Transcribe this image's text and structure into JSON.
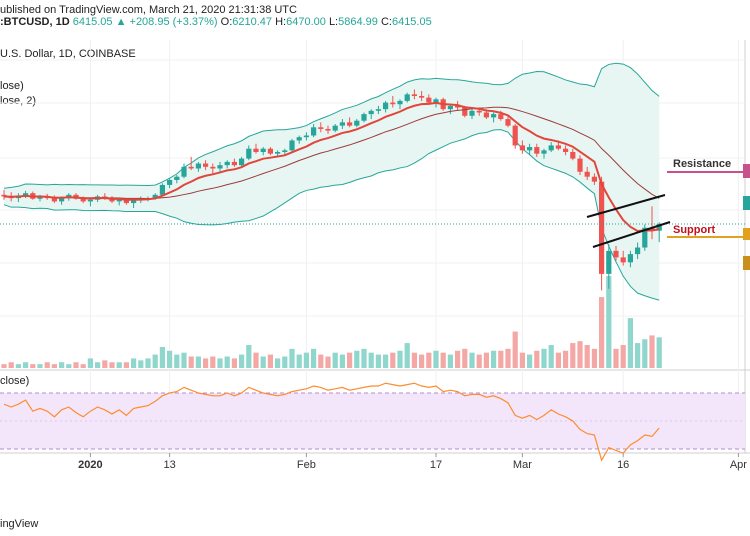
{
  "header": {
    "published": "ublished on TradingView.com, March 21, 2020 21:31:38 UTC",
    "symbol": ":BTCUSD, 1D",
    "last": "6415.05",
    "arrow": "▲",
    "change": "+208.95 (+3.37%)",
    "o_label": "O:",
    "o": "6210.47",
    "h_label": "H:",
    "h": "6470.00",
    "l_label": "L:",
    "l": "5864.99",
    "c_label": "C:",
    "c": "6415.05"
  },
  "subtitle": "U.S. Dollar, 1D, COINBASE",
  "indicators": {
    "line1": "lose)",
    "line2": "lose, 2)",
    "rsi": "close)"
  },
  "footer": "ingView",
  "colors": {
    "up": "#26a69a",
    "down": "#ef5350",
    "bands": "#26a69a",
    "band_fill": "#e8f6f3",
    "ema": "#e2463a",
    "sma": "#9c3b3b",
    "rsi_line": "#ff8c2e",
    "rsi_band": "#f3e6fb",
    "resistance": "#c8508c",
    "support": "#e0a020",
    "vol_up": "#8fd6cc",
    "vol_down": "#f4a8a6"
  },
  "chart_data": {
    "type": "candlestick",
    "x_tick_labels": [
      "2020",
      "13",
      "Feb",
      "17",
      "Mar",
      "16",
      "Apr"
    ],
    "annotations": [
      "Resistance",
      "Support"
    ],
    "ohlc": [
      [
        7300,
        7450,
        7150,
        7250
      ],
      [
        7250,
        7380,
        7100,
        7200
      ],
      [
        7200,
        7350,
        7080,
        7280
      ],
      [
        7280,
        7420,
        7200,
        7350
      ],
      [
        7350,
        7400,
        7150,
        7180
      ],
      [
        7180,
        7300,
        7100,
        7250
      ],
      [
        7250,
        7330,
        7150,
        7200
      ],
      [
        7200,
        7280,
        7050,
        7100
      ],
      [
        7100,
        7250,
        7000,
        7200
      ],
      [
        7200,
        7350,
        7120,
        7300
      ],
      [
        7300,
        7350,
        7150,
        7180
      ],
      [
        7180,
        7250,
        7050,
        7100
      ],
      [
        7100,
        7200,
        6950,
        7150
      ],
      [
        7150,
        7300,
        7080,
        7250
      ],
      [
        7250,
        7350,
        7150,
        7200
      ],
      [
        7200,
        7260,
        7050,
        7100
      ],
      [
        7100,
        7220,
        6980,
        7150
      ],
      [
        7150,
        7200,
        7000,
        7050
      ],
      [
        7050,
        7200,
        6900,
        7150
      ],
      [
        7150,
        7250,
        7050,
        7180
      ],
      [
        7180,
        7250,
        7100,
        7200
      ],
      [
        7200,
        7350,
        7150,
        7300
      ],
      [
        7300,
        7650,
        7250,
        7600
      ],
      [
        7600,
        7800,
        7500,
        7750
      ],
      [
        7750,
        7900,
        7650,
        7850
      ],
      [
        7850,
        8250,
        7800,
        8150
      ],
      [
        8150,
        8450,
        8050,
        8100
      ],
      [
        8100,
        8300,
        8000,
        8250
      ],
      [
        8250,
        8350,
        8050,
        8150
      ],
      [
        8150,
        8250,
        7950,
        8100
      ],
      [
        8100,
        8300,
        8000,
        8200
      ],
      [
        8200,
        8350,
        8100,
        8300
      ],
      [
        8300,
        8400,
        8150,
        8200
      ],
      [
        8200,
        8450,
        8150,
        8400
      ],
      [
        8400,
        8800,
        8350,
        8700
      ],
      [
        8700,
        8850,
        8550,
        8600
      ],
      [
        8600,
        8750,
        8500,
        8700
      ],
      [
        8700,
        8750,
        8500,
        8550
      ],
      [
        8550,
        8650,
        8450,
        8600
      ],
      [
        8600,
        8700,
        8500,
        8650
      ],
      [
        8650,
        9000,
        8600,
        8950
      ],
      [
        8950,
        9100,
        8850,
        9050
      ],
      [
        9050,
        9200,
        8950,
        9100
      ],
      [
        9100,
        9450,
        9050,
        9350
      ],
      [
        9350,
        9500,
        9200,
        9300
      ],
      [
        9300,
        9400,
        9150,
        9250
      ],
      [
        9250,
        9450,
        9200,
        9400
      ],
      [
        9400,
        9600,
        9300,
        9500
      ],
      [
        9500,
        9650,
        9350,
        9400
      ],
      [
        9400,
        9600,
        9350,
        9550
      ],
      [
        9550,
        9800,
        9500,
        9750
      ],
      [
        9750,
        9900,
        9600,
        9850
      ],
      [
        9850,
        10000,
        9750,
        9900
      ],
      [
        9900,
        10150,
        9800,
        10100
      ],
      [
        10100,
        10300,
        9950,
        10050
      ],
      [
        10050,
        10200,
        9900,
        10150
      ],
      [
        10150,
        10400,
        10100,
        10350
      ],
      [
        10350,
        10500,
        10200,
        10300
      ],
      [
        10300,
        10450,
        10150,
        10250
      ],
      [
        10250,
        10350,
        10050,
        10100
      ],
      [
        10100,
        10250,
        9950,
        10200
      ],
      [
        10200,
        10250,
        9850,
        9900
      ],
      [
        9900,
        10050,
        9750,
        10000
      ],
      [
        10000,
        10150,
        9850,
        9950
      ],
      [
        9950,
        10000,
        9650,
        9700
      ],
      [
        9700,
        9950,
        9600,
        9850
      ],
      [
        9850,
        9950,
        9700,
        9800
      ],
      [
        9800,
        9900,
        9600,
        9650
      ],
      [
        9650,
        9800,
        9500,
        9750
      ],
      [
        9750,
        9850,
        9550,
        9600
      ],
      [
        9600,
        9700,
        9350,
        9400
      ],
      [
        9400,
        9450,
        8700,
        8800
      ],
      [
        8800,
        8950,
        8550,
        8650
      ],
      [
        8650,
        8850,
        8500,
        8750
      ],
      [
        8750,
        8850,
        8450,
        8550
      ],
      [
        8550,
        8700,
        8400,
        8650
      ],
      [
        8650,
        8900,
        8600,
        8800
      ],
      [
        8800,
        8950,
        8650,
        8700
      ],
      [
        8700,
        8800,
        8500,
        8600
      ],
      [
        8600,
        8700,
        8350,
        8400
      ],
      [
        8400,
        8500,
        7900,
        8000
      ],
      [
        8000,
        8150,
        7750,
        7850
      ],
      [
        7850,
        7950,
        7600,
        7700
      ],
      [
        7700,
        7850,
        4400,
        4900
      ],
      [
        4900,
        5800,
        4450,
        5600
      ],
      [
        5600,
        5750,
        5300,
        5400
      ],
      [
        5400,
        5600,
        5150,
        5250
      ],
      [
        5250,
        5600,
        5100,
        5500
      ],
      [
        5500,
        5850,
        5350,
        5700
      ],
      [
        5700,
        6400,
        5600,
        6300
      ],
      [
        6300,
        6950,
        5950,
        6200
      ],
      [
        6210,
        6470,
        5865,
        6415
      ]
    ],
    "volume": [
      2,
      3,
      2,
      3,
      2,
      2,
      3,
      2,
      3,
      2,
      3,
      2,
      5,
      3,
      4,
      3,
      3,
      3,
      5,
      4,
      5,
      7,
      11,
      9,
      7,
      8,
      6,
      6,
      5,
      6,
      5,
      6,
      5,
      7,
      12,
      8,
      6,
      7,
      5,
      6,
      10,
      7,
      8,
      10,
      7,
      6,
      8,
      7,
      8,
      9,
      10,
      8,
      7,
      7,
      8,
      9,
      13,
      8,
      7,
      8,
      9,
      8,
      7,
      9,
      10,
      8,
      7,
      8,
      9,
      9,
      10,
      19,
      8,
      7,
      9,
      10,
      12,
      8,
      9,
      13,
      14,
      12,
      10,
      37,
      48,
      10,
      12,
      26,
      13,
      15,
      17,
      16
    ],
    "rsi": [
      62,
      60,
      62,
      65,
      57,
      59,
      57,
      53,
      58,
      60,
      56,
      53,
      57,
      60,
      58,
      55,
      58,
      54,
      59,
      60,
      61,
      64,
      68,
      70,
      71,
      74,
      72,
      70,
      69,
      68,
      68,
      70,
      68,
      70,
      74,
      72,
      70,
      69,
      68,
      69,
      71,
      72,
      73,
      75,
      74,
      72,
      73,
      74,
      72,
      73,
      74,
      75,
      75,
      77,
      76,
      75,
      76,
      77,
      75,
      74,
      75,
      71,
      72,
      71,
      68,
      69,
      69,
      67,
      68,
      66,
      63,
      54,
      52,
      54,
      51,
      54,
      58,
      55,
      53,
      50,
      44,
      41,
      40,
      22,
      31,
      29,
      27,
      33,
      36,
      40,
      39,
      45
    ],
    "rsi_levels": [
      70,
      30
    ],
    "price_range": [
      3500,
      12000
    ],
    "rsi_range": [
      15,
      85
    ]
  }
}
